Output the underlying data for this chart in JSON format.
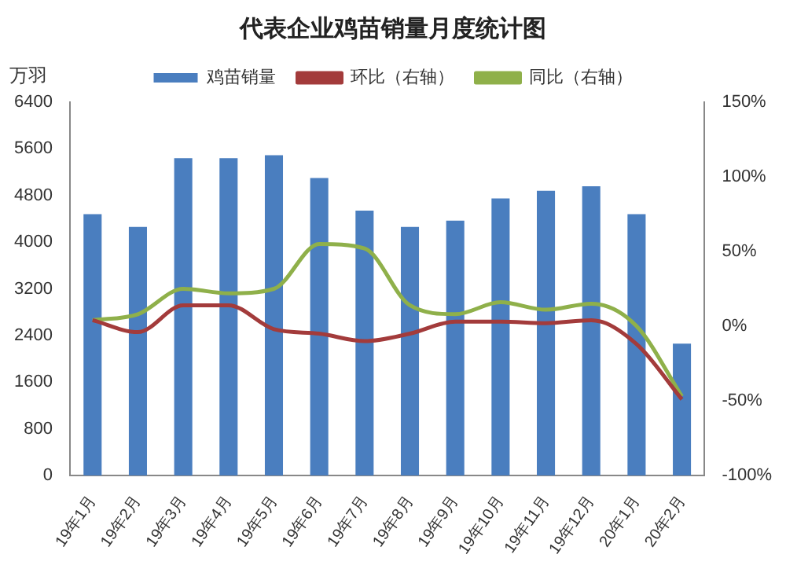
{
  "chart_data": {
    "type": "bar",
    "title": "代表企业鸡苗销量月度统计图",
    "ylabel": "万羽",
    "categories": [
      "19年1月",
      "19年2月",
      "19年3月",
      "19年4月",
      "19年5月",
      "19年6月",
      "19年7月",
      "19年8月",
      "19年9月",
      "19年10月",
      "19年11月",
      "19年12月",
      "20年1月",
      "20年2月"
    ],
    "series": [
      {
        "name": "鸡苗销量",
        "color": "#4a7ebf",
        "values": [
          4480,
          4260,
          5440,
          5440,
          5490,
          5100,
          4540,
          4260,
          4370,
          4750,
          4880,
          4960,
          4480,
          2260
        ]
      },
      {
        "name": "环比（右轴）",
        "type": "line",
        "axis": "y2",
        "color": "#a33b3b",
        "values": [
          4,
          -4,
          14,
          14,
          -2,
          -5,
          -10,
          -5,
          3,
          3,
          2,
          4,
          -12,
          -49
        ]
      },
      {
        "name": "同比（右轴）",
        "type": "line",
        "axis": "y2",
        "color": "#8fb04a",
        "values": [
          4,
          8,
          25,
          22,
          25,
          55,
          52,
          14,
          8,
          16,
          11,
          15,
          0,
          -47
        ]
      }
    ],
    "ylim": [
      0,
      6400
    ],
    "yticks": [
      0,
      800,
      1600,
      2400,
      3200,
      4000,
      4800,
      5600,
      6400
    ],
    "y2lim": [
      -100,
      150
    ],
    "y2ticks": [
      {
        "value": -100,
        "label": "-100%"
      },
      {
        "value": -50,
        "label": "-50%"
      },
      {
        "value": 0,
        "label": "0%"
      },
      {
        "value": 50,
        "label": "50%"
      },
      {
        "value": 100,
        "label": "100%"
      },
      {
        "value": 150,
        "label": "150%"
      }
    ],
    "legend": "top",
    "grid": false,
    "marker": "none"
  }
}
